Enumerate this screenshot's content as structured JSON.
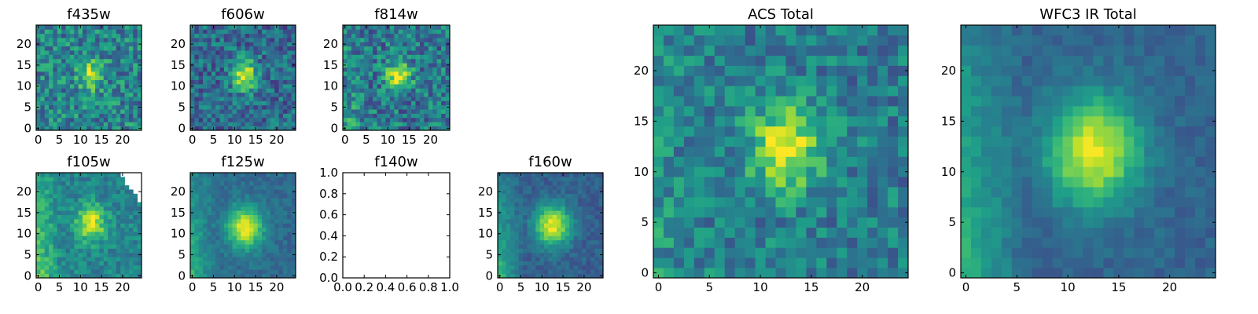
{
  "figure": {
    "colormap": "viridis",
    "colormap_stops": [
      "#440154",
      "#482878",
      "#3e4989",
      "#31688e",
      "#26828e",
      "#1f9e89",
      "#35b779",
      "#6ece58",
      "#b5de2b",
      "#fde725"
    ],
    "panels": [
      {
        "title": "f435w",
        "type": "heatmap",
        "grid_size": 25,
        "x_ticks": [
          "0",
          "5",
          "10",
          "15",
          "20"
        ],
        "y_ticks": [
          "0",
          "5",
          "10",
          "15",
          "20"
        ],
        "source_center": [
          12.5,
          12.5
        ],
        "source_sigma": [
          1.8,
          2.2
        ],
        "peak": 0.95,
        "background": 0.45,
        "noise": 0.45,
        "gradient_left": 0.0,
        "masked_corner": false
      },
      {
        "title": "f606w",
        "type": "heatmap",
        "grid_size": 25,
        "x_ticks": [
          "0",
          "5",
          "10",
          "15",
          "20"
        ],
        "y_ticks": [
          "0",
          "5",
          "10",
          "15",
          "20"
        ],
        "source_center": [
          12.5,
          12.5
        ],
        "source_sigma": [
          2.0,
          2.5
        ],
        "peak": 0.95,
        "background": 0.35,
        "noise": 0.4,
        "gradient_left": 0.0,
        "masked_corner": false
      },
      {
        "title": "f814w",
        "type": "heatmap",
        "grid_size": 25,
        "x_ticks": [
          "0",
          "5",
          "10",
          "15",
          "20"
        ],
        "y_ticks": [
          "0",
          "5",
          "10",
          "15",
          "20"
        ],
        "source_center": [
          12.5,
          12.5
        ],
        "source_sigma": [
          2.0,
          2.2
        ],
        "peak": 0.95,
        "background": 0.4,
        "noise": 0.45,
        "gradient_left": 0.15,
        "masked_corner": false
      },
      {
        "title": "f105w",
        "type": "heatmap",
        "grid_size": 25,
        "x_ticks": [
          "0",
          "5",
          "10",
          "15",
          "20"
        ],
        "y_ticks": [
          "0",
          "5",
          "10",
          "15",
          "20"
        ],
        "source_center": [
          12.5,
          12.5
        ],
        "source_sigma": [
          2.5,
          3.0
        ],
        "peak": 0.9,
        "background": 0.45,
        "noise": 0.25,
        "gradient_left": 0.3,
        "masked_corner": true
      },
      {
        "title": "f125w",
        "type": "heatmap",
        "grid_size": 25,
        "x_ticks": [
          "0",
          "5",
          "10",
          "15",
          "20"
        ],
        "y_ticks": [
          "0",
          "5",
          "10",
          "15",
          "20"
        ],
        "source_center": [
          12.5,
          11.5
        ],
        "source_sigma": [
          3.0,
          3.5
        ],
        "peak": 0.95,
        "background": 0.35,
        "noise": 0.15,
        "gradient_left": 0.3,
        "masked_corner": false
      },
      {
        "title": "f140w",
        "type": "empty",
        "x_ticks": [
          "0.0",
          "0.2",
          "0.4",
          "0.6",
          "0.8",
          "1.0"
        ],
        "y_ticks": [
          "0.0",
          "0.2",
          "0.4",
          "0.6",
          "0.8",
          "1.0"
        ],
        "xlim": [
          0,
          1
        ],
        "ylim": [
          0,
          1
        ]
      },
      {
        "title": "f160w",
        "type": "heatmap",
        "grid_size": 25,
        "x_ticks": [
          "0",
          "5",
          "10",
          "15",
          "20"
        ],
        "y_ticks": [
          "0",
          "5",
          "10",
          "15",
          "20"
        ],
        "source_center": [
          12.5,
          12.0
        ],
        "source_sigma": [
          3.0,
          3.5
        ],
        "peak": 0.95,
        "background": 0.3,
        "noise": 0.15,
        "gradient_left": 0.35,
        "masked_corner": false
      },
      {
        "title": "ACS Total",
        "type": "heatmap",
        "grid_size": 25,
        "x_ticks": [
          "0",
          "5",
          "10",
          "15",
          "20"
        ],
        "y_ticks": [
          "0",
          "5",
          "10",
          "15",
          "20"
        ],
        "source_center": [
          12.5,
          12.5
        ],
        "source_sigma": [
          2.4,
          3.0
        ],
        "peak": 0.95,
        "background": 0.42,
        "noise": 0.35,
        "gradient_left": 0.1,
        "masked_corner": false
      },
      {
        "title": "WFC3 IR Total",
        "type": "heatmap",
        "grid_size": 25,
        "x_ticks": [
          "0",
          "5",
          "10",
          "15",
          "20"
        ],
        "y_ticks": [
          "0",
          "5",
          "10",
          "15",
          "20"
        ],
        "source_center": [
          12.5,
          12.0
        ],
        "source_sigma": [
          3.2,
          3.8
        ],
        "peak": 0.95,
        "background": 0.32,
        "noise": 0.12,
        "gradient_left": 0.35,
        "masked_corner": false
      }
    ]
  },
  "chart_data": [
    {
      "type": "heatmap",
      "title": "f435w",
      "x_range": [
        0,
        24
      ],
      "y_range": [
        0,
        24
      ],
      "x_ticks": [
        0,
        5,
        10,
        15,
        20
      ],
      "y_ticks": [
        0,
        5,
        10,
        15,
        20
      ],
      "peak_pixel": [
        12,
        13
      ]
    },
    {
      "type": "heatmap",
      "title": "f606w",
      "x_range": [
        0,
        24
      ],
      "y_range": [
        0,
        24
      ],
      "x_ticks": [
        0,
        5,
        10,
        15,
        20
      ],
      "y_ticks": [
        0,
        5,
        10,
        15,
        20
      ],
      "peak_pixel": [
        12,
        13
      ]
    },
    {
      "type": "heatmap",
      "title": "f814w",
      "x_range": [
        0,
        24
      ],
      "y_range": [
        0,
        24
      ],
      "x_ticks": [
        0,
        5,
        10,
        15,
        20
      ],
      "y_ticks": [
        0,
        5,
        10,
        15,
        20
      ],
      "peak_pixel": [
        12,
        12
      ]
    },
    {
      "type": "heatmap",
      "title": "f105w",
      "x_range": [
        0,
        24
      ],
      "y_range": [
        0,
        24
      ],
      "x_ticks": [
        0,
        5,
        10,
        15,
        20
      ],
      "y_ticks": [
        0,
        5,
        10,
        15,
        20
      ],
      "peak_pixel": [
        12,
        13
      ]
    },
    {
      "type": "heatmap",
      "title": "f125w",
      "x_range": [
        0,
        24
      ],
      "y_range": [
        0,
        24
      ],
      "x_ticks": [
        0,
        5,
        10,
        15,
        20
      ],
      "y_ticks": [
        0,
        5,
        10,
        15,
        20
      ],
      "peak_pixel": [
        12,
        12
      ]
    },
    {
      "type": "empty",
      "title": "f140w",
      "xlim": [
        0,
        1
      ],
      "ylim": [
        0,
        1
      ],
      "x_ticks": [
        0.0,
        0.2,
        0.4,
        0.6,
        0.8,
        1.0
      ],
      "y_ticks": [
        0.0,
        0.2,
        0.4,
        0.6,
        0.8,
        1.0
      ]
    },
    {
      "type": "heatmap",
      "title": "f160w",
      "x_range": [
        0,
        24
      ],
      "y_range": [
        0,
        24
      ],
      "x_ticks": [
        0,
        5,
        10,
        15,
        20
      ],
      "y_ticks": [
        0,
        5,
        10,
        15,
        20
      ],
      "peak_pixel": [
        12,
        12
      ]
    },
    {
      "type": "heatmap",
      "title": "ACS Total",
      "x_range": [
        0,
        24
      ],
      "y_range": [
        0,
        24
      ],
      "x_ticks": [
        0,
        5,
        10,
        15,
        20
      ],
      "y_ticks": [
        0,
        5,
        10,
        15,
        20
      ],
      "peak_pixel": [
        12,
        12
      ]
    },
    {
      "type": "heatmap",
      "title": "WFC3 IR Total",
      "x_range": [
        0,
        24
      ],
      "y_range": [
        0,
        24
      ],
      "x_ticks": [
        0,
        5,
        10,
        15,
        20
      ],
      "y_ticks": [
        0,
        5,
        10,
        15,
        20
      ],
      "peak_pixel": [
        12,
        12
      ]
    }
  ]
}
